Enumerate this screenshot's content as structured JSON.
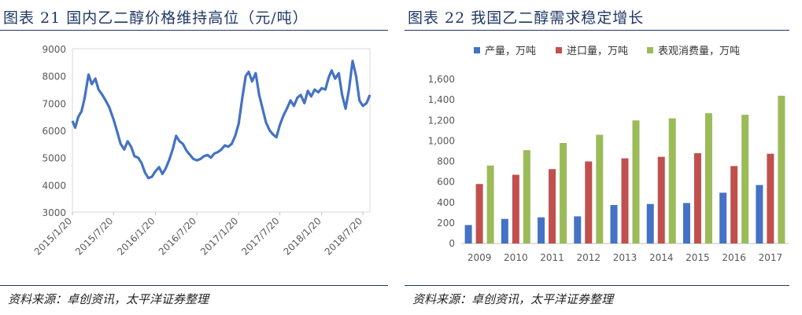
{
  "left": {
    "title": "图表 21  国内乙二醇价格维持高位（元/吨）",
    "source": "资料来源：卓创资讯，太平洋证券整理"
  },
  "right": {
    "title": "图表 22  我国乙二醇需求稳定增长",
    "source": "资料来源：卓创资讯，太平洋证券整理"
  },
  "chart_data": [
    {
      "type": "line",
      "title": "图表 21 国内乙二醇价格维持高位（元/吨）",
      "ylim": [
        3000,
        9000
      ],
      "yticks": [
        3000,
        4000,
        5000,
        6000,
        7000,
        8000,
        9000
      ],
      "xticks": [
        "2015/1/20",
        "2015/7/20",
        "2016/1/20",
        "2016/7/20",
        "2017/1/20",
        "2017/7/20",
        "2018/1/20",
        "2018/7/20"
      ],
      "color": "#4472c4",
      "series": [
        {
          "x": [
            "2015-01-20",
            "2015-02-01",
            "2015-02-15",
            "2015-03-01",
            "2015-03-15",
            "2015-04-01",
            "2015-04-15",
            "2015-05-01",
            "2015-05-15",
            "2015-06-01",
            "2015-06-15",
            "2015-07-01",
            "2015-07-20",
            "2015-08-05",
            "2015-08-20",
            "2015-09-05",
            "2015-09-20",
            "2015-10-05",
            "2015-10-20",
            "2015-11-05",
            "2015-11-20",
            "2015-12-05",
            "2015-12-20",
            "2016-01-05",
            "2016-01-20",
            "2016-02-05",
            "2016-02-20",
            "2016-03-05",
            "2016-03-20",
            "2016-04-05",
            "2016-04-20",
            "2016-05-05",
            "2016-05-20",
            "2016-06-05",
            "2016-06-20",
            "2016-07-05",
            "2016-07-20",
            "2016-08-05",
            "2016-08-20",
            "2016-09-05",
            "2016-09-20",
            "2016-10-05",
            "2016-10-20",
            "2016-11-05",
            "2016-11-20",
            "2016-12-05",
            "2016-12-20",
            "2017-01-05",
            "2017-01-20",
            "2017-02-05",
            "2017-02-20",
            "2017-03-05",
            "2017-03-20",
            "2017-04-05",
            "2017-04-20",
            "2017-05-05",
            "2017-05-20",
            "2017-06-05",
            "2017-06-20",
            "2017-07-05",
            "2017-07-20",
            "2017-08-05",
            "2017-08-20",
            "2017-09-05",
            "2017-09-20",
            "2017-10-05",
            "2017-10-20",
            "2017-11-05",
            "2017-11-20",
            "2017-12-05",
            "2017-12-20",
            "2018-01-05",
            "2018-01-20",
            "2018-02-05",
            "2018-02-20",
            "2018-03-05",
            "2018-03-20",
            "2018-04-05",
            "2018-04-20",
            "2018-05-05",
            "2018-05-20",
            "2018-06-05",
            "2018-06-20",
            "2018-07-05",
            "2018-07-20",
            "2018-08-05",
            "2018-08-20"
          ],
          "y": [
            6350,
            6100,
            6500,
            6700,
            7200,
            8050,
            7700,
            7900,
            7500,
            7300,
            7100,
            6850,
            6400,
            5950,
            5500,
            5300,
            5600,
            5400,
            5050,
            5000,
            4800,
            4450,
            4250,
            4300,
            4500,
            4650,
            4400,
            4600,
            4900,
            5300,
            5800,
            5600,
            5500,
            5250,
            5100,
            4950,
            4900,
            4950,
            5050,
            5100,
            5000,
            5150,
            5200,
            5300,
            5450,
            5400,
            5500,
            5800,
            6250,
            7200,
            8000,
            8150,
            7800,
            8100,
            7300,
            6800,
            6300,
            6000,
            5850,
            5750,
            6200,
            6550,
            6800,
            7100,
            6900,
            7200,
            7300,
            7000,
            7450,
            7250,
            7500,
            7400,
            7550,
            7500,
            7950,
            8200,
            7900,
            8100,
            7300,
            6800,
            7500,
            8550,
            8000,
            7100,
            6900,
            7000,
            7300
          ]
        }
      ]
    },
    {
      "type": "bar",
      "title": "图表 22 我国乙二醇需求稳定增长",
      "categories": [
        "2009",
        "2010",
        "2011",
        "2012",
        "2013",
        "2014",
        "2015",
        "2016",
        "2017"
      ],
      "ylim": [
        0,
        1600
      ],
      "yticks": [
        "0",
        "200",
        "400",
        "600",
        "800",
        "1,000",
        "1,200",
        "1,400",
        "1,600"
      ],
      "legend_position": "top",
      "series": [
        {
          "name": "产量，万吨",
          "color": "#4472c4",
          "values": [
            180,
            240,
            255,
            265,
            375,
            385,
            395,
            495,
            570
          ]
        },
        {
          "name": "进口量，万吨",
          "color": "#c0504d",
          "values": [
            580,
            670,
            725,
            800,
            830,
            845,
            880,
            755,
            875
          ]
        },
        {
          "name": "表观消费量，万吨",
          "color": "#9bbb59",
          "values": [
            760,
            910,
            980,
            1060,
            1200,
            1220,
            1270,
            1255,
            1440
          ]
        }
      ]
    }
  ]
}
